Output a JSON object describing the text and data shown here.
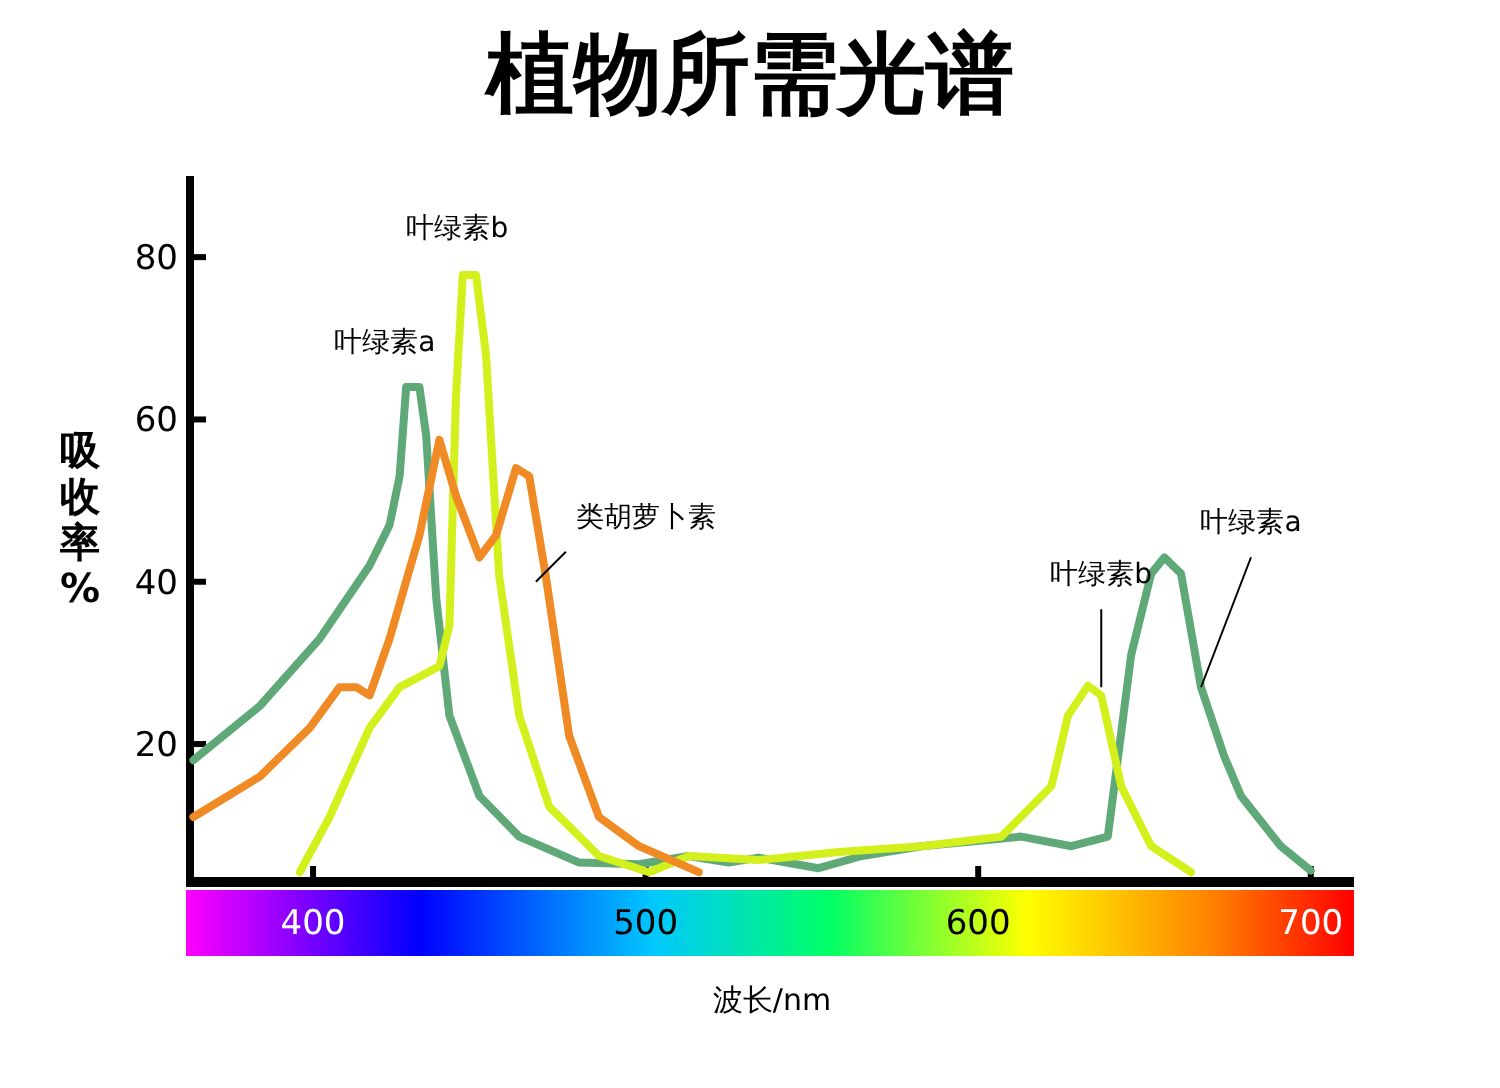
{
  "chart_data": {
    "type": "line",
    "title": "植物所需光谱",
    "xlabel": "波长/nm",
    "ylabel": "吸收率%",
    "xlim": [
      363,
      713
    ],
    "ylim": [
      3,
      90
    ],
    "xticks": [
      400,
      500,
      600,
      700
    ],
    "yticks": [
      20,
      40,
      60,
      80
    ],
    "grid": false,
    "marker": "none",
    "line_style": "solid",
    "series": [
      {
        "color": "#5fa878",
        "x": [
          364,
          384,
          402,
          417,
          423,
          426,
          428,
          432,
          434,
          437,
          441,
          450,
          462,
          480,
          498,
          513,
          525,
          534,
          552,
          565,
          583,
          601,
          613,
          628,
          639,
          646,
          652,
          656,
          661,
          667,
          674,
          679,
          691,
          700
        ],
        "values": [
          18,
          24.7,
          33,
          42,
          47,
          53,
          64,
          64,
          58,
          38,
          23.5,
          13.6,
          8.6,
          5.4,
          5.2,
          6.2,
          5.4,
          6,
          4.7,
          6.2,
          7.4,
          8.1,
          8.6,
          7.4,
          8.6,
          31,
          41,
          43,
          41,
          27,
          18.5,
          13.6,
          7.4,
          4.4
        ]
      },
      {
        "color": "#d4f01c",
        "x": [
          396,
          405,
          417,
          426,
          438,
          441,
          443,
          445,
          449,
          452,
          456,
          462,
          471,
          486,
          501,
          513,
          534,
          558,
          583,
          607,
          622,
          627,
          633,
          637,
          643,
          652,
          664
        ],
        "values": [
          4.2,
          11,
          22,
          27,
          29.6,
          34.6,
          63,
          77.8,
          77.8,
          68,
          40.7,
          23.5,
          12.3,
          6.2,
          4.2,
          6.2,
          5.7,
          6.7,
          7.4,
          8.6,
          14.8,
          23.5,
          27.2,
          26,
          14.8,
          7.4,
          4.2
        ]
      },
      {
        "color": "#f08a24",
        "x": [
          364,
          384,
          399,
          408,
          413,
          417,
          423,
          432,
          438,
          443,
          450,
          455,
          461,
          465,
          470,
          477,
          486,
          498,
          516
        ],
        "values": [
          11,
          16,
          22,
          27,
          27,
          26,
          33,
          45.7,
          57.5,
          50.6,
          43,
          45.7,
          54,
          53,
          40.7,
          21,
          11,
          7.4,
          4.2
        ]
      }
    ],
    "annotations": [
      {
        "text": "叶绿素a",
        "x": 430,
        "y": 65
      },
      {
        "text": "叶绿素b",
        "x": 447,
        "y": 79
      },
      {
        "text": "类胡萝卜素",
        "x": 467,
        "y": 40
      },
      {
        "text": "叶绿素b",
        "x": 637,
        "y": 27
      },
      {
        "text": "叶绿素a",
        "x": 667,
        "y": 27
      }
    ]
  }
}
